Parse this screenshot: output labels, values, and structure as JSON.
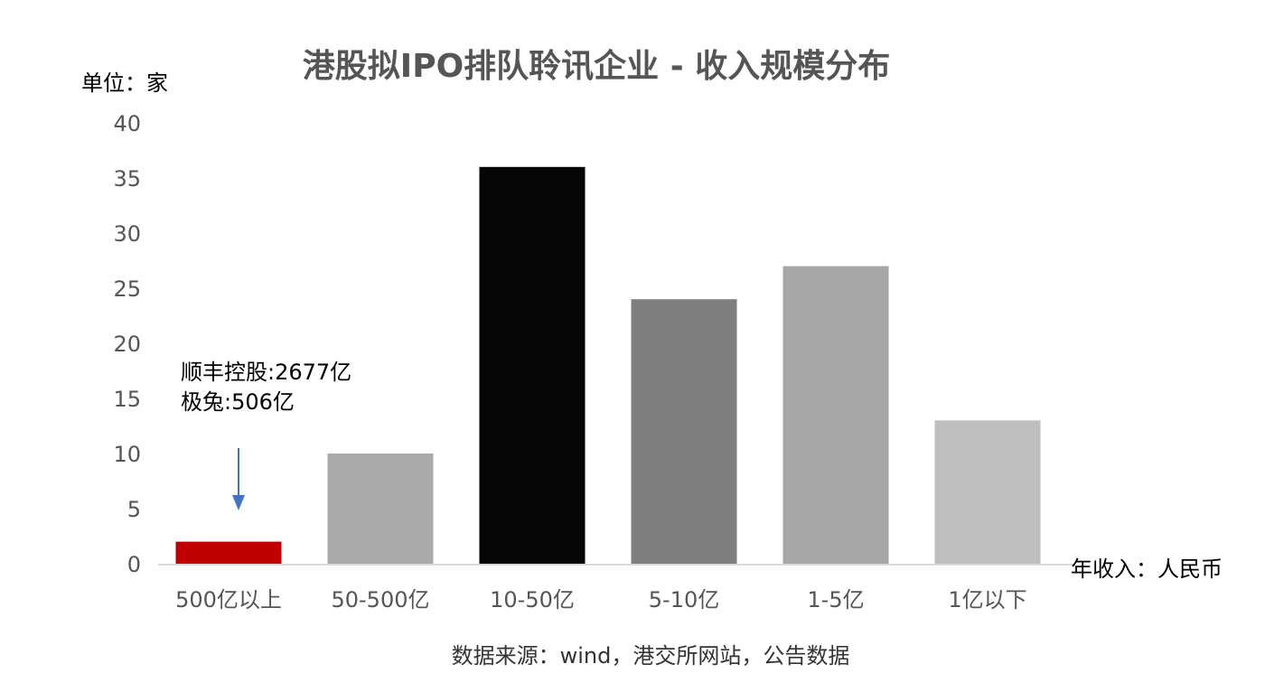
{
  "chart_data": {
    "type": "bar",
    "title": "港股拟IPO排队聆讯企业 - 收入规模分布",
    "ylabel": "单位：家",
    "xlabel": "年收入：人民币",
    "categories": [
      "500亿以上",
      "50-500亿",
      "10-50亿",
      "5-10亿",
      "1-5亿",
      "1亿以下"
    ],
    "values": [
      2,
      10,
      36,
      24,
      27,
      13
    ],
    "bar_colors": [
      "#c00000",
      "#aaaaaa",
      "#050505",
      "#7f7f7f",
      "#a6a6a6",
      "#bfbfbf"
    ],
    "ylim": [
      0,
      40
    ],
    "yticks": [
      0,
      5,
      10,
      15,
      20,
      25,
      30,
      35,
      40
    ],
    "grid": false,
    "legend": "none",
    "annotation": {
      "lines": [
        "顺丰控股:2677亿",
        "极兔:506亿"
      ],
      "arrow_color": "#4472c4"
    },
    "source": "数据来源：wind，港交所网站，公告数据"
  }
}
